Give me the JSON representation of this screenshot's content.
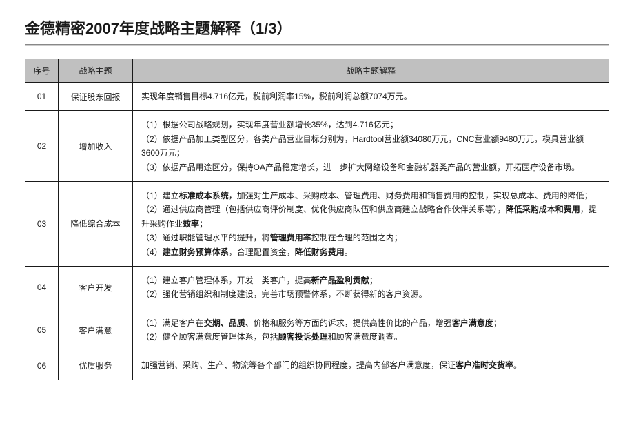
{
  "title": "金德精密2007年度战略主题解释（1/3）",
  "table": {
    "headers": {
      "seq": "序号",
      "theme": "战略主题",
      "explain": "战略主题解释"
    },
    "column_widths": {
      "seq": 48,
      "theme": 108
    },
    "header_bg": "#c0c0c0",
    "border_color": "#1a1a1a",
    "font_size": 12,
    "rows": [
      {
        "seq": "01",
        "theme": "保证股东回报",
        "explain_html": "实现年度销售目标4.716亿元，税前利润率15%，税前利润总额7074万元。"
      },
      {
        "seq": "02",
        "theme": "增加收入",
        "explain_html": "（1）根据公司战略规划，实现年度营业额增长35%，达到4.716亿元；<br>（2）依据产品加工类型区分，各类产品营业目标分别为，Hardtool营业额34080万元，CNC营业额9480万元，模具营业额3600万元；<br>（3）依据产品用途区分，保持OA产品稳定增长，进一步扩大网络设备和金融机器类产品的营业额，开拓医疗设备市场。"
      },
      {
        "seq": "03",
        "theme": "降低综合成本",
        "explain_html": "（1）建立<span class=\"b\">标准成本系统</span>，加强对生产成本、采购成本、管理费用、财务费用和销售费用的控制，实现总成本、费用的降低；<br>（2）通过供应商管理（包括供应商评价制度、优化供应商队伍和供应商建立战略合作伙伴关系等），<span class=\"b\">降低采购成本和费用</span>，提升采购作业<span class=\"b\">效率</span>；<br>（3）通过职能管理水平的提升，将<span class=\"b\">管理费用率</span>控制在合理的范围之内；<br>（4）<span class=\"b\">建立财务预算体系</span>，合理配置资金，<span class=\"b\">降低财务费用</span>。"
      },
      {
        "seq": "04",
        "theme": "客户开发",
        "explain_html": "（1）建立客户管理体系，开发一类客户，提高<span class=\"b\">新产品盈利贡献</span>；<br>（2）强化营销组织和制度建设，完善市场预警体系，不断获得新的客户资源。"
      },
      {
        "seq": "05",
        "theme": "客户满意",
        "explain_html": "（1）满足客户在<span class=\"b\">交期、品质</span>、价格和服务等方面的诉求，提供高性价比的产品，增强<span class=\"b\">客户满意度</span>；<br>（2）健全顾客满意度管理体系，包括<span class=\"b\">顾客投诉处理</span>和顾客满意度调查。"
      },
      {
        "seq": "06",
        "theme": "优质服务",
        "explain_html": "加强营销、采购、生产、物流等各个部门的组织协同程度，提高内部客户满意度，保证<span class=\"b\">客户准时交货率</span>。"
      }
    ]
  }
}
